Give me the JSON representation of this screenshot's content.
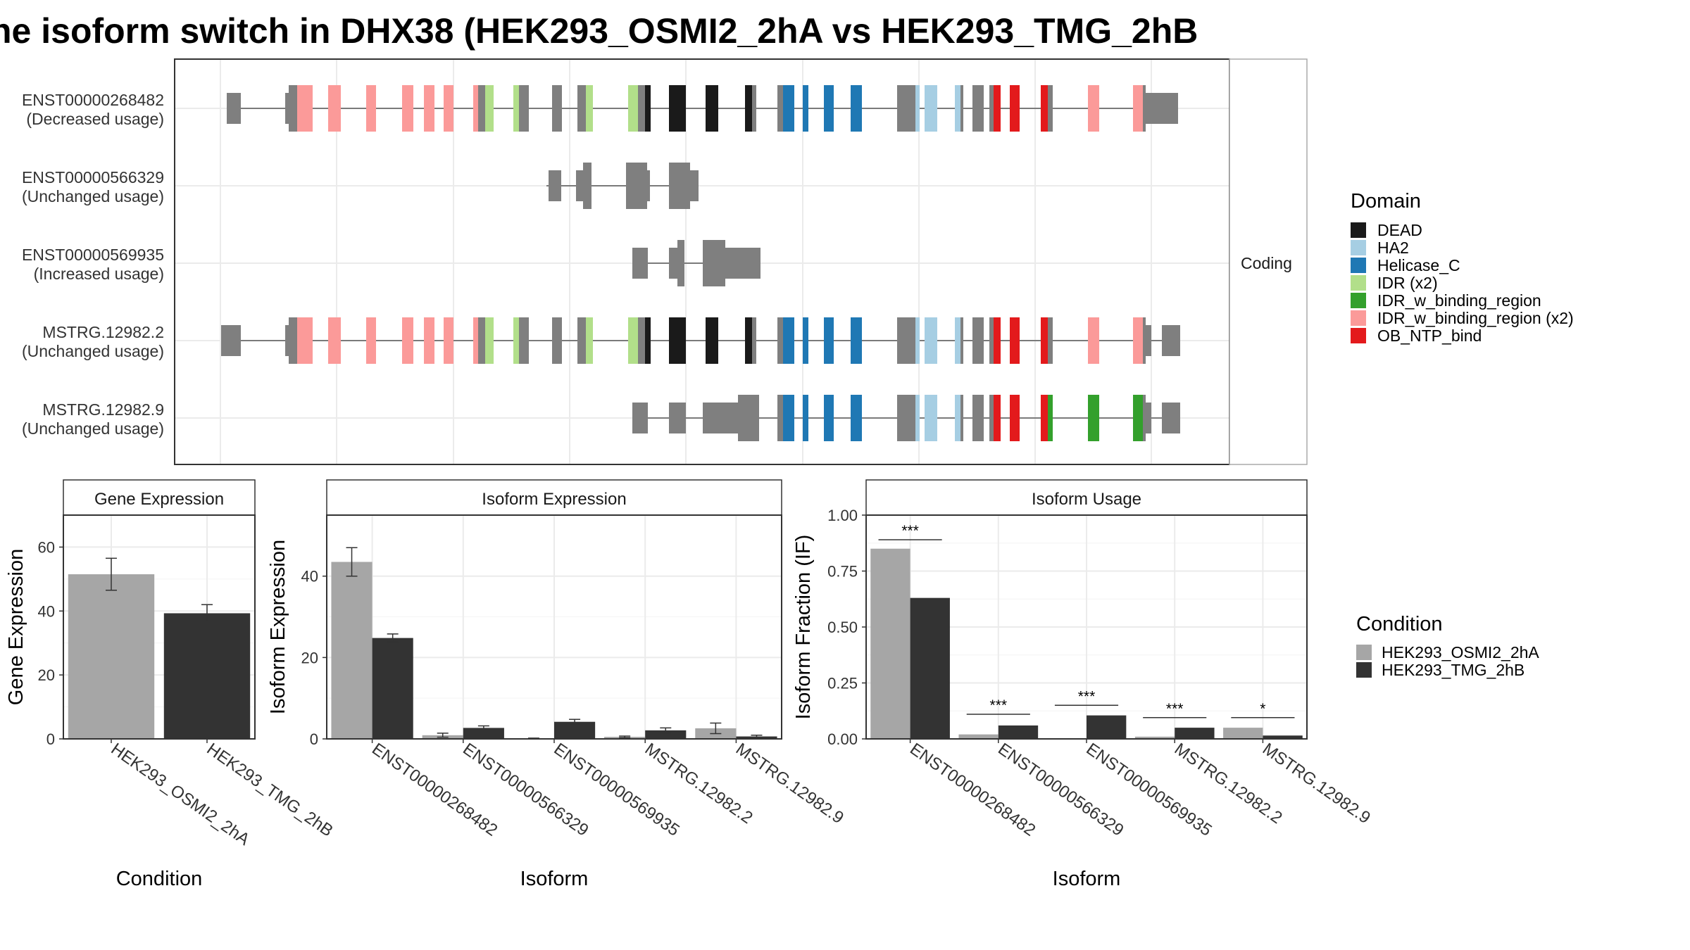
{
  "title": "he isoform switch in DHX38 (HEK293_OSMI2_2hA vs HEK293_TMG_2hB",
  "colors": {
    "condition_a": "#a6a6a6",
    "condition_b": "#333333",
    "intron": "#7f7f7f",
    "exon": "#7f7f7f",
    "DEAD": "#1a1a1a",
    "HA2": "#a6cee3",
    "Helicase_C": "#1f78b4",
    "IDR (x2)": "#b2df8a",
    "IDR_w_binding_region": "#33a02c",
    "IDR_w_binding_region (x2)": "#fb9a99",
    "OB_NTP_bind": "#e31a1c"
  },
  "chart_data": [
    {
      "type": "gene-structure",
      "facet_label": "Coding",
      "transcripts": [
        {
          "id": "ENST00000268482",
          "status": "(Decreased usage)"
        },
        {
          "id": "ENST00000566329",
          "status": "(Unchanged usage)"
        },
        {
          "id": "ENST00000569935",
          "status": "(Increased usage)"
        },
        {
          "id": "MSTRG.12982.2",
          "status": "(Unchanged usage)"
        },
        {
          "id": "MSTRG.12982.9",
          "status": "(Unchanged usage)"
        }
      ],
      "legend_title": "Domain",
      "legend": [
        "DEAD",
        "HA2",
        "Helicase_C",
        "IDR (x2)",
        "IDR_w_binding_region",
        "IDR_w_binding_region (x2)",
        "OB_NTP_bind"
      ]
    },
    {
      "type": "bar",
      "panel": "Gene Expression",
      "xlabel": "Condition",
      "ylabel": "Gene Expression",
      "ylim": [
        0,
        70
      ],
      "yticks": [
        0,
        20,
        40,
        60
      ],
      "categories": [
        "HEK293_OSMI2_2hA",
        "HEK293_TMG_2hB"
      ],
      "values": [
        51.5,
        39.3
      ],
      "errors": [
        [
          46.5,
          56.5
        ],
        [
          36.6,
          42.0
        ]
      ]
    },
    {
      "type": "bar",
      "panel": "Isoform Expression",
      "xlabel": "Isoform",
      "ylabel": "Isoform Expression",
      "ylim": [
        0,
        55
      ],
      "yticks": [
        0,
        20,
        40
      ],
      "categories": [
        "ENST00000268482",
        "ENST00000566329",
        "ENST00000569935",
        "MSTRG.12982.2",
        "MSTRG.12982.9"
      ],
      "series": [
        {
          "name": "HEK293_OSMI2_2hA",
          "values": [
            43.5,
            0.9,
            0.1,
            0.5,
            2.6
          ],
          "errors": [
            [
              40.0,
              47.0
            ],
            [
              0.4,
              1.4
            ],
            [
              0.0,
              0.2
            ],
            [
              0.3,
              0.7
            ],
            [
              1.3,
              3.9
            ]
          ]
        },
        {
          "name": "HEK293_TMG_2hB",
          "values": [
            24.8,
            2.7,
            4.2,
            2.1,
            0.6
          ],
          "errors": [
            [
              23.8,
              25.8
            ],
            [
              2.2,
              3.2
            ],
            [
              3.6,
              4.8
            ],
            [
              1.5,
              2.7
            ],
            [
              0.3,
              0.9
            ]
          ]
        }
      ]
    },
    {
      "type": "bar",
      "panel": "Isoform Usage",
      "xlabel": "Isoform",
      "ylabel": "Isoform Fraction (IF)",
      "ylim": [
        0,
        1.0
      ],
      "yticks": [
        0.0,
        0.25,
        0.5,
        0.75,
        1.0
      ],
      "ytick_labels": [
        "0.00",
        "0.25",
        "0.50",
        "0.75",
        "1.00"
      ],
      "categories": [
        "ENST00000268482",
        "ENST00000566329",
        "ENST00000569935",
        "MSTRG.12982.2",
        "MSTRG.12982.9"
      ],
      "series": [
        {
          "name": "HEK293_OSMI2_2hA",
          "values": [
            0.85,
            0.02,
            0.0,
            0.01,
            0.05
          ]
        },
        {
          "name": "HEK293_TMG_2hB",
          "values": [
            0.63,
            0.06,
            0.105,
            0.05,
            0.015
          ]
        }
      ],
      "significance": [
        "***",
        "***",
        "***",
        "***",
        "*"
      ],
      "significance_levels": [
        0.89,
        0.11,
        0.15,
        0.095,
        0.095
      ]
    }
  ],
  "condition_legend": {
    "title": "Condition",
    "items": [
      "HEK293_OSMI2_2hA",
      "HEK293_TMG_2hB"
    ]
  }
}
